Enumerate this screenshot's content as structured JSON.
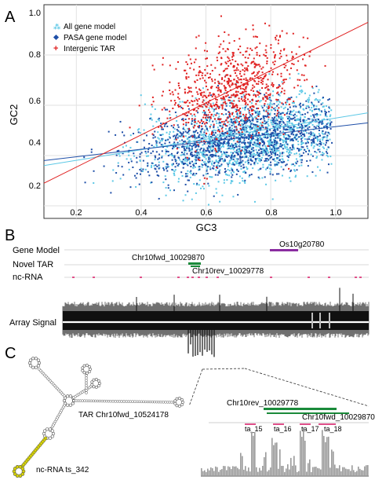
{
  "panel_labels": {
    "a": "A",
    "b": "B",
    "c": "C"
  },
  "panel_a": {
    "y_ticks": [
      "1.0",
      "0.8",
      "0.6",
      "0.4",
      "0.2"
    ],
    "x_ticks": [
      "0.2",
      "0.4",
      "0.6",
      "0.8",
      "1.0"
    ],
    "xlabel": "GC3",
    "ylabel": "GC2",
    "legend": [
      "All gene model",
      "PASA gene model",
      "Intergenic TAR"
    ],
    "colors": {
      "all": "#5cc8e6",
      "pasa": "#1f4fa8",
      "tar": "#e02020"
    }
  },
  "panel_b": {
    "track_labels": [
      "Gene Model",
      "Novel TAR",
      "nc-RNA",
      "Array Signal"
    ],
    "feature_labels": {
      "gene": "Os10g20780",
      "tar_fwd": "Chr10fwd_10029870",
      "tar_rev": "Chr10rev_10029778"
    },
    "colors": {
      "gene": "#8a2ca0",
      "tar": "#1a8a3a",
      "ncrna": "#e0508a"
    }
  },
  "panel_c": {
    "structure_labels": {
      "tar": "TAR Chr10fwd_10524178",
      "ncrna": "nc-RNA ts_342"
    },
    "zoom_labels": {
      "rev": "Chr10rev_10029778",
      "fwd": "Chr10fwd_10029870",
      "ta": [
        "ta_15",
        "ta_16",
        "ta_17",
        "ta_18"
      ]
    }
  },
  "chart_data": [
    {
      "type": "scatter",
      "xlabel": "GC3",
      "ylabel": "GC2",
      "xlim": [
        0.1,
        1.1
      ],
      "ylim": [
        0.15,
        1.0
      ],
      "legend_position": "top-left",
      "grid": true,
      "series": [
        {
          "name": "All gene model",
          "color": "#5cc8e6",
          "center": [
            0.75,
            0.47
          ],
          "spread": [
            0.17,
            0.08
          ],
          "trend": {
            "x": [
              0.1,
              1.1
            ],
            "y": [
              0.36,
              0.57
            ]
          }
        },
        {
          "name": "PASA gene model",
          "color": "#1f4fa8",
          "center": [
            0.72,
            0.46
          ],
          "spread": [
            0.18,
            0.07
          ],
          "trend": {
            "x": [
              0.1,
              1.1
            ],
            "y": [
              0.38,
              0.53
            ]
          }
        },
        {
          "name": "Intergenic TAR",
          "color": "#e02020",
          "center": [
            0.68,
            0.67
          ],
          "spread": [
            0.1,
            0.1
          ],
          "trend": {
            "x": [
              0.1,
              1.1
            ],
            "y": [
              0.29,
              0.93
            ]
          }
        }
      ]
    }
  ]
}
